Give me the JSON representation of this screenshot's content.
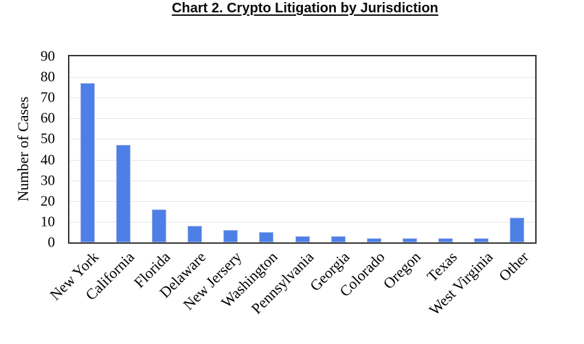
{
  "chart_data": {
    "type": "bar",
    "title": "Chart 2. Crypto Litigation by Jurisdiction",
    "categories": [
      "New York",
      "California",
      "Florida",
      "Delaware",
      "New Jersery",
      "Washington",
      "Pennsylvania",
      "Georgia",
      "Colorado",
      "Oregon",
      "Texas",
      "West Virginia",
      "Other"
    ],
    "values": [
      77,
      47,
      16,
      8,
      6,
      5,
      3,
      3,
      2,
      2,
      2,
      2,
      12
    ],
    "xlabel": "",
    "ylabel": "Number of Cases",
    "ylim": [
      0,
      90
    ],
    "ytick_step": 10,
    "grid": true,
    "legend": "none",
    "colors": {
      "bar_fill": "#4d7fe6",
      "bar_edge": "#9fb6ef",
      "gridline": "#e6e6e6",
      "axis_border": "#333333",
      "text": "#000000"
    }
  }
}
